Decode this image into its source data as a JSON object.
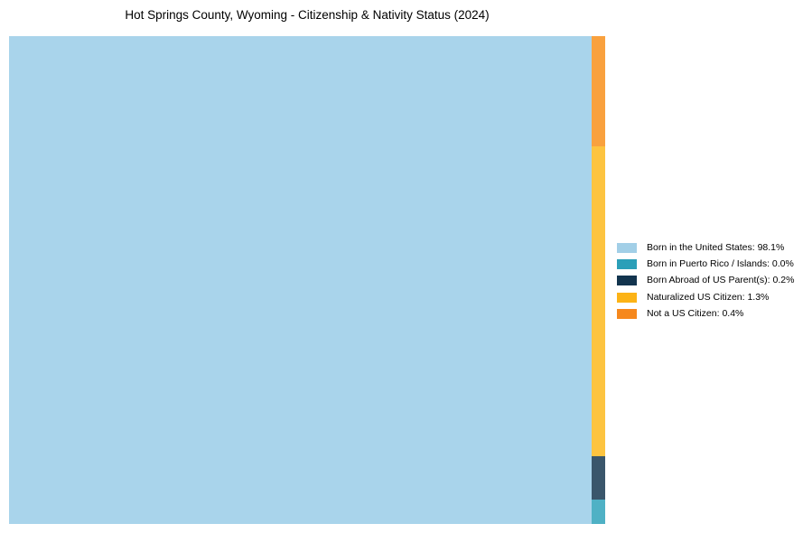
{
  "title": "Hot Springs County, Wyoming - Citizenship & Nativity Status (2024)",
  "legend": {
    "items": [
      {
        "text": "Born in the United States: 98.1%",
        "color": "#A2CFE7"
      },
      {
        "text": "Born in Puerto Rico / Islands: 0.0%",
        "color": "#2B9FB8"
      },
      {
        "text": "Born Abroad of US Parent(s): 0.2%",
        "color": "#12344E"
      },
      {
        "text": "Naturalized US Citizen: 1.3%",
        "color": "#FCB316"
      },
      {
        "text": "Not a US Citizen: 0.4%",
        "color": "#F6881D"
      }
    ]
  },
  "treemap": {
    "cells": [
      {
        "name": "born-us",
        "color": "#A9D4EB"
      },
      {
        "name": "not-citizen",
        "color": "#F9A13E"
      },
      {
        "name": "naturalized",
        "color": "#FDC440"
      },
      {
        "name": "born-abroad",
        "color": "#3A566B"
      },
      {
        "name": "puerto-rico",
        "color": "#4FB1C5"
      }
    ]
  },
  "chart_data": {
    "type": "treemap",
    "title": "Hot Springs County, Wyoming - Citizenship & Nativity Status (2024)",
    "categories": [
      "Born in the United States",
      "Born in Puerto Rico / Islands",
      "Born Abroad of US Parent(s)",
      "Naturalized US Citizen",
      "Not a US Citizen"
    ],
    "values": [
      98.1,
      0.0,
      0.2,
      1.3,
      0.4
    ],
    "unit": "%",
    "legend_position": "right",
    "legend_labels": [
      "Born in the United States: 98.1%",
      "Born in Puerto Rico / Islands: 0.0%",
      "Born Abroad of US Parent(s): 0.2%",
      "Naturalized US Citizen: 1.3%",
      "Not a US Citizen: 0.4%"
    ],
    "colors": {
      "born_in_united_states": "#A2CFE7",
      "born_in_puerto_rico_islands": "#2B9FB8",
      "born_abroad_of_us_parents": "#12344E",
      "naturalized_us_citizen": "#FCB316",
      "not_a_us_citizen": "#F6881D"
    }
  }
}
